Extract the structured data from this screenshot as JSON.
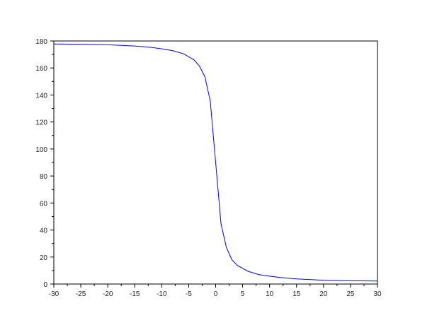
{
  "chart_data": {
    "type": "line",
    "title": "",
    "xlabel": "",
    "ylabel": "",
    "xlim": [
      -30,
      30
    ],
    "ylim": [
      0,
      180
    ],
    "grid": false,
    "x_ticks": [
      "-30",
      "-25",
      "-20",
      "-15",
      "-10",
      "-5",
      "0",
      "5",
      "10",
      "15",
      "20",
      "25",
      "30"
    ],
    "y_ticks": [
      "0",
      "20",
      "40",
      "60",
      "80",
      "100",
      "120",
      "140",
      "160",
      "180"
    ],
    "series": [
      {
        "color": "#0000ff",
        "x": [
          -30,
          -25,
          -20,
          -15,
          -12,
          -10,
          -8,
          -6,
          -4,
          -3,
          -2,
          -1,
          0,
          1,
          2,
          3,
          4,
          6,
          8,
          10,
          12,
          15,
          20,
          25,
          30
        ],
        "y": [
          177.8,
          177.6,
          177.2,
          176.3,
          175.3,
          174.2,
          172.9,
          170.6,
          166.0,
          161.5,
          153.5,
          135.5,
          90,
          44.5,
          27,
          18,
          13.8,
          9.4,
          7,
          5.8,
          4.8,
          3.8,
          2.8,
          2.4,
          2.2
        ]
      }
    ]
  }
}
